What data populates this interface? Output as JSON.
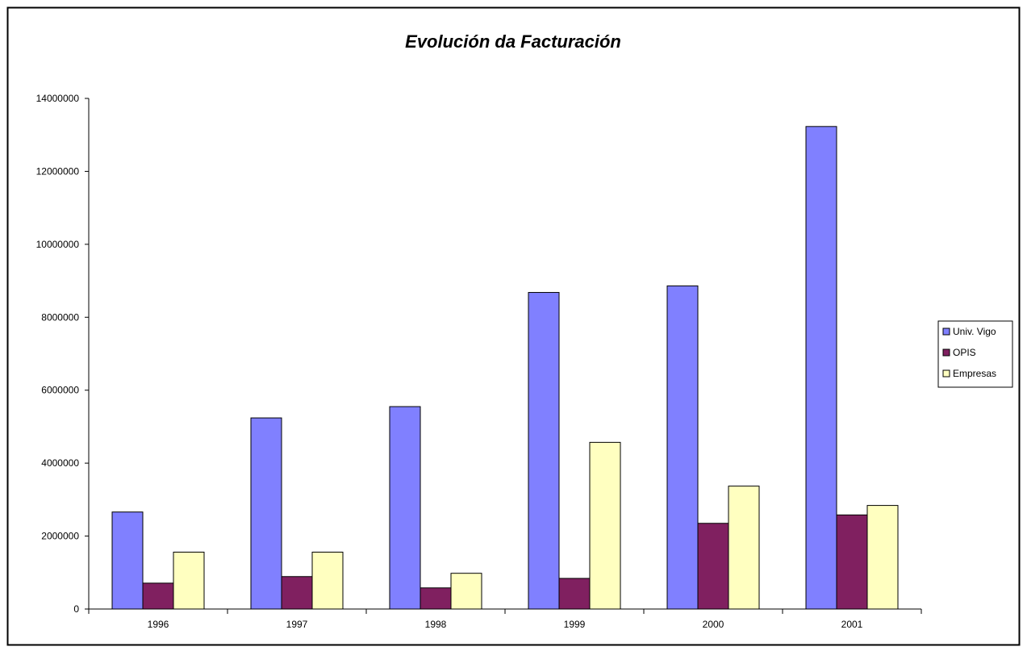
{
  "chart_data": {
    "type": "bar",
    "title": "Evolución da Facturación",
    "xlabel": "",
    "ylabel": "",
    "categories": [
      "1996",
      "1997",
      "1998",
      "1999",
      "2000",
      "2001"
    ],
    "series": [
      {
        "name": "Univ. Vigo",
        "color": "#8080ff",
        "values": [
          2660000,
          5240000,
          5550000,
          8680000,
          8860000,
          13230000
        ]
      },
      {
        "name": "OPIS",
        "color": "#802060",
        "values": [
          710000,
          890000,
          580000,
          840000,
          2350000,
          2580000
        ]
      },
      {
        "name": "Empresas",
        "color": "#ffffc0",
        "values": [
          1560000,
          1560000,
          980000,
          4570000,
          3370000,
          2840000
        ]
      }
    ],
    "ylim": [
      0,
      14000000
    ],
    "yticks": [
      "0",
      "2000000",
      "4000000",
      "6000000",
      "8000000",
      "10000000",
      "12000000",
      "14000000"
    ],
    "grid": false,
    "legend_position": "right"
  }
}
